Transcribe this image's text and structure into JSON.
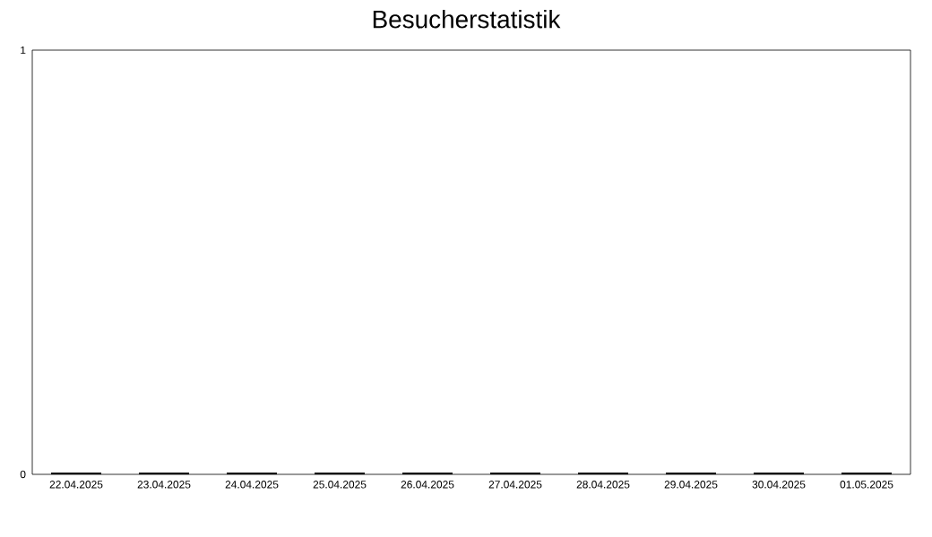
{
  "chart_data": {
    "type": "bar",
    "title": "Besucherstatistik",
    "categories": [
      "22.04.2025",
      "23.04.2025",
      "24.04.2025",
      "25.04.2025",
      "26.04.2025",
      "27.04.2025",
      "28.04.2025",
      "29.04.2025",
      "30.04.2025",
      "01.05.2025"
    ],
    "values": [
      0,
      0,
      0,
      0,
      0,
      0,
      0,
      0,
      0,
      0
    ],
    "color": "#000000",
    "ylim": [
      0,
      1
    ],
    "yticks": [
      0,
      1
    ],
    "grid": false
  }
}
